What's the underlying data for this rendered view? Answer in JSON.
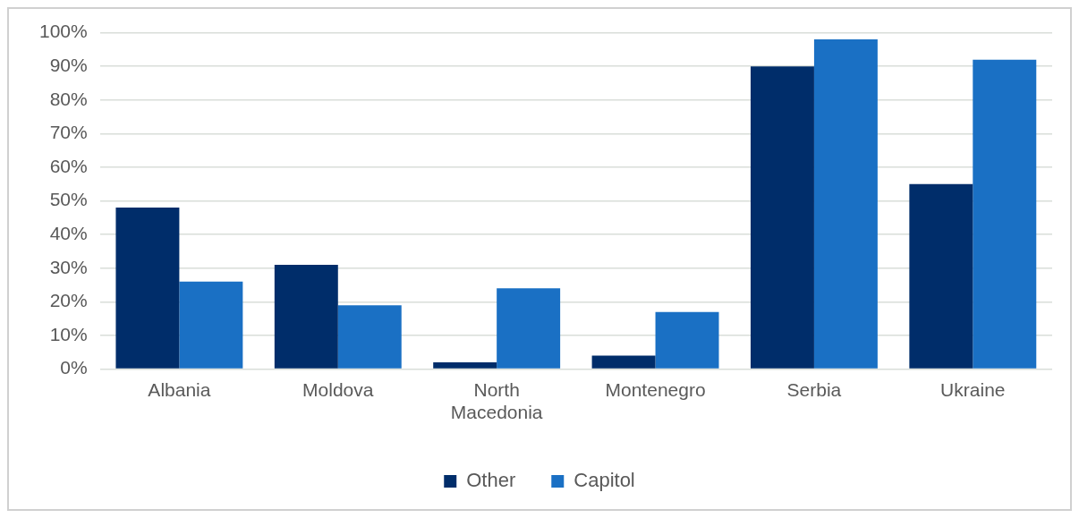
{
  "chart_data": {
    "type": "bar",
    "categories": [
      "Albania",
      "Moldova",
      "North Macedonia",
      "Montenegro",
      "Serbia",
      "Ukraine"
    ],
    "series": [
      {
        "name": "Other",
        "color": "#002d6a",
        "values": [
          48,
          31,
          2,
          4,
          90,
          55
        ]
      },
      {
        "name": "Capitol",
        "color": "#1a70c4",
        "values": [
          26,
          19,
          24,
          17,
          98,
          92
        ]
      }
    ],
    "ylim": [
      0,
      100
    ],
    "yticks": [
      {
        "value": 0,
        "label": "0%"
      },
      {
        "value": 10,
        "label": "10%"
      },
      {
        "value": 20,
        "label": "20%"
      },
      {
        "value": 30,
        "label": "30%"
      },
      {
        "value": 40,
        "label": "40%"
      },
      {
        "value": 50,
        "label": "50%"
      },
      {
        "value": 60,
        "label": "60%"
      },
      {
        "value": 70,
        "label": "70%"
      },
      {
        "value": 80,
        "label": "80%"
      },
      {
        "value": 90,
        "label": "90%"
      },
      {
        "value": 100,
        "label": "100%"
      }
    ],
    "grid": "y",
    "legend": "bottom"
  }
}
